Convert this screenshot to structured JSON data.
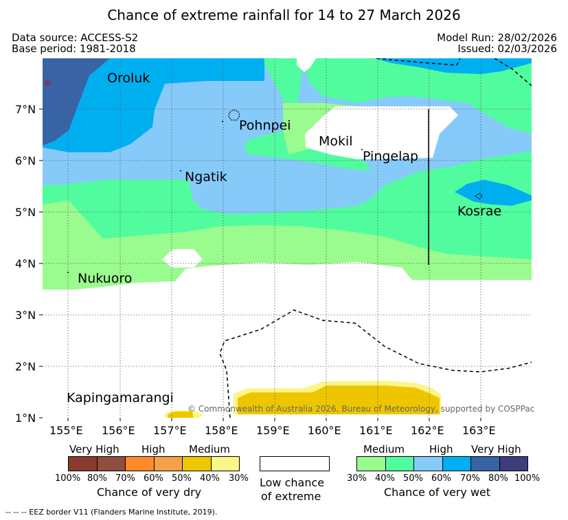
{
  "title": "Chance of extreme rainfall for 14 to 27 March 2026",
  "header": {
    "data_source": "Data source: ACCESS-S2",
    "base_period": "Base period: 1981-2018",
    "model_run": "Model Run: 28/02/2026",
    "issued": "Issued: 02/03/2026"
  },
  "map": {
    "lat_labels": [
      "7°N",
      "6°N",
      "5°N",
      "4°N",
      "3°N",
      "2°N",
      "1°N"
    ],
    "lon_labels": [
      "155°E",
      "156°E",
      "157°E",
      "158°E",
      "159°E",
      "160°E",
      "161°E",
      "162°E",
      "163°E"
    ],
    "places": [
      "Oroluk",
      "Pohnpei",
      "Mokil",
      "Pingelap",
      "Ngatik",
      "Kosrae",
      "Nukuoro",
      "Kapingamarangi"
    ],
    "copyright": "© Commonwealth of Australia 2026, Bureau of Meteorology, supported by COSPPac"
  },
  "legend": {
    "dry": {
      "headers": [
        "Very High",
        "High",
        "Medium"
      ],
      "percents": [
        "100%",
        "80%",
        "70%",
        "60%",
        "50%",
        "40%",
        "30%"
      ],
      "colors": [
        "#8b3a2f",
        "#8f4e3f",
        "#ff8a2a",
        "#f4a24a",
        "#eec600",
        "#fcf58a"
      ],
      "label": "Chance of very dry"
    },
    "neutral": {
      "label_line1": "Low chance",
      "label_line2": "of extreme"
    },
    "wet": {
      "headers": [
        "Medium",
        "High",
        "Very High"
      ],
      "percents": [
        "30%",
        "40%",
        "50%",
        "60%",
        "70%",
        "80%",
        "100%"
      ],
      "colors": [
        "#9afb8e",
        "#51fc9e",
        "#86caf9",
        "#00aff0",
        "#3863a4",
        "#3c3e7c"
      ],
      "label": "Chance of very wet"
    }
  },
  "footnote": "--  --  -- EEZ border V11 (Flanders Marine Institute, 2019)."
}
